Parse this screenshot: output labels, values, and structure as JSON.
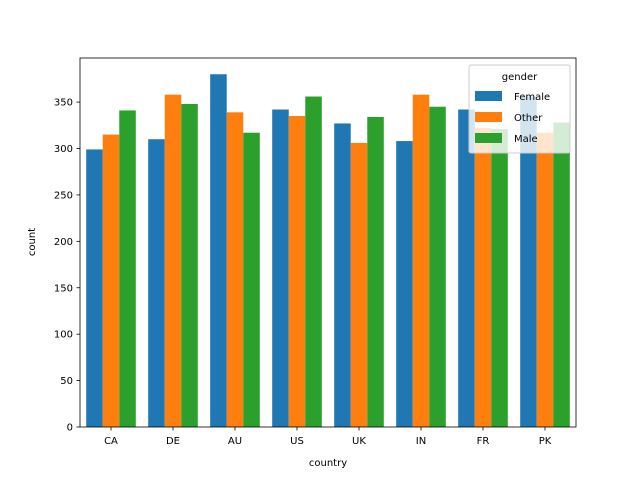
{
  "chart_data": {
    "type": "bar",
    "categories": [
      "CA",
      "DE",
      "AU",
      "US",
      "UK",
      "IN",
      "FR",
      "PK"
    ],
    "series": [
      {
        "name": "Female",
        "color": "#1f77b4",
        "values": [
          299,
          310,
          380,
          342,
          327,
          308,
          342,
          356
        ]
      },
      {
        "name": "Other",
        "color": "#ff7f0e",
        "values": [
          315,
          358,
          339,
          335,
          306,
          358,
          322,
          317
        ]
      },
      {
        "name": "Male",
        "color": "#2ca02c",
        "values": [
          341,
          348,
          317,
          356,
          334,
          345,
          321,
          328
        ]
      }
    ],
    "xlabel": "country",
    "ylabel": "count",
    "ylim": [
      0,
      397.5
    ],
    "yticks": [
      0,
      50,
      100,
      150,
      200,
      250,
      300,
      350
    ],
    "legend": {
      "title": "gender",
      "position": "upper right"
    },
    "grid": false
  }
}
